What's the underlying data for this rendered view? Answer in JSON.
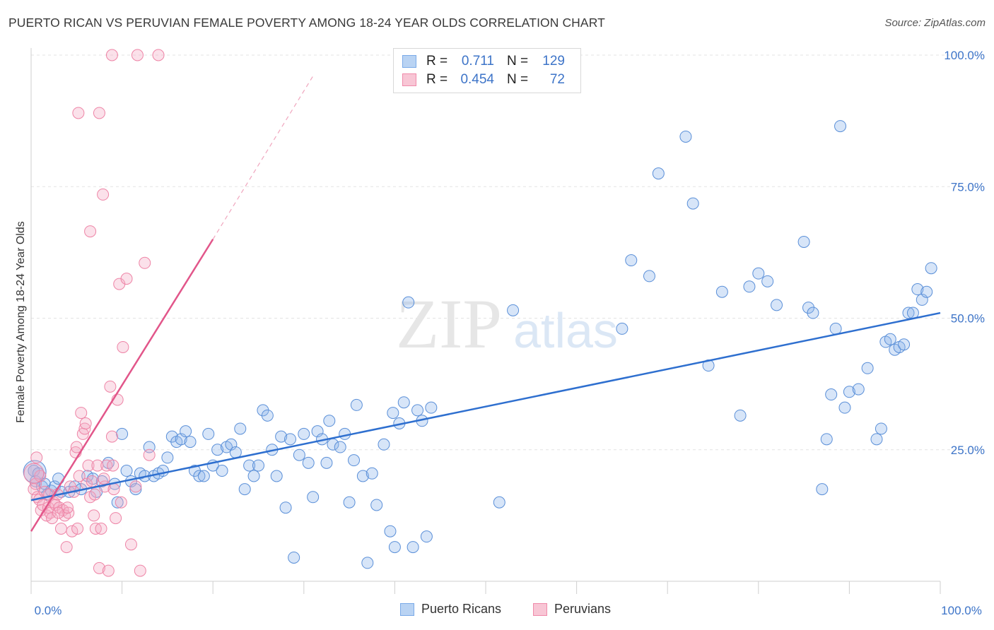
{
  "header": {
    "title": "PUERTO RICAN VS PERUVIAN FEMALE POVERTY AMONG 18-24 YEAR OLDS CORRELATION CHART",
    "source": "Source: ZipAtlas.com"
  },
  "watermark": {
    "zip": "ZIP",
    "atlas": "atlas"
  },
  "legend": {
    "rows": [
      {
        "r_label": "R =",
        "r_value": "0.711",
        "n_label": "N =",
        "n_value": "129",
        "color": "#7aaae8",
        "fill": "#b9d3f3"
      },
      {
        "r_label": "R =",
        "r_value": "0.454",
        "n_label": "N =",
        "n_value": "72",
        "color": "#f08aaa",
        "fill": "#f8c6d5"
      }
    ]
  },
  "bottom_legend": {
    "items": [
      {
        "label": "Puerto Ricans"
      },
      {
        "label": "Peruvians"
      }
    ]
  },
  "chart_data": {
    "type": "scatter",
    "title": "PUERTO RICAN VS PERUVIAN FEMALE POVERTY AMONG 18-24 YEAR OLDS CORRELATION CHART",
    "xlabel": "",
    "ylabel": "Female Poverty Among 18-24 Year Olds",
    "xlim": [
      0,
      100
    ],
    "ylim": [
      0,
      100
    ],
    "x_tick_labels": [
      "0.0%",
      "100.0%"
    ],
    "y_tick_labels": [
      "25.0%",
      "50.0%",
      "75.0%",
      "100.0%"
    ],
    "y_ticks": [
      25,
      50,
      75,
      100
    ],
    "grid": true,
    "legend_position": "top-center",
    "series": [
      {
        "name": "Puerto Ricans",
        "color": "#5a8fd8",
        "fill": "rgba(140,180,235,0.35)",
        "trend": {
          "x": [
            0,
            100
          ],
          "y": [
            15.4,
            51.0
          ],
          "color": "#2e6fcf"
        },
        "points": [
          [
            0.3,
            21.0
          ],
          [
            0.5,
            19.0
          ],
          [
            0.8,
            20.5
          ],
          [
            1.2,
            18.0
          ],
          [
            1.5,
            18.5
          ],
          [
            1.8,
            16.5
          ],
          [
            2.2,
            17.2
          ],
          [
            2.6,
            18.0
          ],
          [
            3.0,
            19.5
          ],
          [
            3.3,
            17.0
          ],
          [
            4.2,
            17.0
          ],
          [
            4.8,
            18.0
          ],
          [
            5.5,
            17.5
          ],
          [
            6.2,
            20.0
          ],
          [
            6.8,
            19.5
          ],
          [
            7.2,
            17.0
          ],
          [
            7.8,
            19.0
          ],
          [
            8.5,
            22.5
          ],
          [
            9.2,
            18.5
          ],
          [
            9.5,
            15.0
          ],
          [
            10.0,
            28.0
          ],
          [
            10.5,
            21.0
          ],
          [
            11.0,
            19.0
          ],
          [
            11.5,
            17.5
          ],
          [
            12.0,
            20.5
          ],
          [
            12.5,
            20.0
          ],
          [
            13.0,
            25.5
          ],
          [
            13.5,
            20.0
          ],
          [
            14.0,
            20.5
          ],
          [
            14.5,
            21.0
          ],
          [
            15.0,
            23.5
          ],
          [
            15.5,
            27.5
          ],
          [
            16.0,
            26.5
          ],
          [
            16.5,
            27.0
          ],
          [
            17.0,
            28.5
          ],
          [
            17.5,
            26.5
          ],
          [
            18.0,
            21.0
          ],
          [
            18.5,
            20.0
          ],
          [
            19.0,
            20.0
          ],
          [
            19.5,
            28.0
          ],
          [
            20.0,
            22.0
          ],
          [
            20.5,
            25.0
          ],
          [
            21.0,
            21.0
          ],
          [
            21.5,
            25.5
          ],
          [
            22.0,
            26.0
          ],
          [
            22.5,
            24.5
          ],
          [
            23.0,
            29.0
          ],
          [
            23.5,
            17.5
          ],
          [
            24.0,
            22.0
          ],
          [
            24.5,
            20.0
          ],
          [
            25.0,
            22.0
          ],
          [
            25.5,
            32.5
          ],
          [
            26.0,
            31.5
          ],
          [
            26.5,
            25.0
          ],
          [
            27.0,
            20.0
          ],
          [
            27.5,
            27.5
          ],
          [
            28.0,
            14.0
          ],
          [
            28.5,
            27.0
          ],
          [
            28.9,
            4.5
          ],
          [
            29.5,
            24.0
          ],
          [
            30.0,
            28.0
          ],
          [
            30.5,
            22.5
          ],
          [
            31.0,
            16.0
          ],
          [
            31.5,
            28.5
          ],
          [
            32.0,
            27.0
          ],
          [
            32.5,
            22.5
          ],
          [
            32.8,
            30.5
          ],
          [
            33.2,
            26.0
          ],
          [
            34.0,
            25.5
          ],
          [
            34.5,
            28.0
          ],
          [
            35.0,
            15.0
          ],
          [
            35.5,
            23.0
          ],
          [
            35.8,
            33.5
          ],
          [
            36.5,
            20.0
          ],
          [
            37.0,
            3.5
          ],
          [
            37.5,
            20.5
          ],
          [
            38.0,
            14.5
          ],
          [
            38.8,
            26.0
          ],
          [
            39.5,
            9.5
          ],
          [
            39.8,
            32.0
          ],
          [
            40.0,
            6.5
          ],
          [
            40.5,
            30.0
          ],
          [
            41.0,
            34.0
          ],
          [
            41.5,
            53.0
          ],
          [
            42.0,
            6.5
          ],
          [
            42.5,
            32.5
          ],
          [
            43.0,
            30.5
          ],
          [
            43.5,
            8.5
          ],
          [
            44.0,
            33.0
          ],
          [
            51.5,
            15.0
          ],
          [
            53.0,
            51.5
          ],
          [
            65.0,
            48.0
          ],
          [
            66.0,
            61.0
          ],
          [
            68.0,
            58.0
          ],
          [
            69.0,
            77.5
          ],
          [
            72.0,
            84.5
          ],
          [
            72.8,
            71.8
          ],
          [
            74.5,
            41.0
          ],
          [
            76.0,
            55.0
          ],
          [
            78.0,
            31.5
          ],
          [
            79.0,
            56.0
          ],
          [
            80.0,
            58.5
          ],
          [
            81.0,
            57.0
          ],
          [
            82.0,
            52.5
          ],
          [
            85.0,
            64.5
          ],
          [
            85.5,
            52.0
          ],
          [
            86.0,
            51.0
          ],
          [
            87.0,
            17.5
          ],
          [
            87.5,
            27.0
          ],
          [
            88.0,
            35.5
          ],
          [
            88.5,
            48.0
          ],
          [
            89.0,
            86.5
          ],
          [
            89.5,
            33.0
          ],
          [
            90.0,
            36.0
          ],
          [
            91.0,
            36.5
          ],
          [
            92.0,
            40.5
          ],
          [
            93.0,
            27.0
          ],
          [
            93.5,
            29.0
          ],
          [
            94.0,
            45.5
          ],
          [
            94.5,
            46.0
          ],
          [
            95.0,
            44.0
          ],
          [
            95.5,
            44.5
          ],
          [
            96.0,
            45.0
          ],
          [
            96.5,
            51.0
          ],
          [
            97.0,
            51.0
          ],
          [
            97.5,
            55.5
          ],
          [
            98.0,
            53.5
          ],
          [
            98.5,
            55.0
          ],
          [
            99.0,
            59.5
          ]
        ],
        "large_points": [
          [
            0.4,
            20.8,
            16
          ]
        ]
      },
      {
        "name": "Peruvians",
        "color": "#ee84a6",
        "fill": "rgba(244,170,195,0.35)",
        "trend": {
          "x": [
            0,
            20
          ],
          "y": [
            9.5,
            65.0
          ],
          "dash_to": [
            31,
            96
          ],
          "color": "#e2568a"
        },
        "points": [
          [
            0.3,
            17.5
          ],
          [
            0.5,
            18.5
          ],
          [
            0.7,
            16.0
          ],
          [
            0.9,
            15.5
          ],
          [
            1.1,
            13.5
          ],
          [
            1.3,
            14.5
          ],
          [
            1.5,
            17.0
          ],
          [
            1.7,
            12.5
          ],
          [
            1.9,
            14.0
          ],
          [
            2.1,
            13.0
          ],
          [
            2.3,
            12.0
          ],
          [
            2.5,
            15.0
          ],
          [
            2.7,
            14.5
          ],
          [
            2.9,
            16.5
          ],
          [
            3.1,
            14.0
          ],
          [
            3.3,
            10.0
          ],
          [
            3.5,
            13.5
          ],
          [
            3.7,
            12.5
          ],
          [
            3.9,
            6.5
          ],
          [
            4.1,
            13.0
          ],
          [
            4.3,
            18.0
          ],
          [
            4.5,
            9.5
          ],
          [
            4.7,
            17.0
          ],
          [
            4.9,
            24.5
          ],
          [
            5.1,
            10.0
          ],
          [
            5.3,
            20.0
          ],
          [
            5.5,
            32.0
          ],
          [
            5.7,
            28.0
          ],
          [
            5.9,
            29.0
          ],
          [
            6.1,
            18.5
          ],
          [
            6.3,
            22.0
          ],
          [
            6.5,
            16.0
          ],
          [
            6.7,
            19.0
          ],
          [
            6.9,
            12.5
          ],
          [
            7.1,
            10.0
          ],
          [
            7.3,
            22.0
          ],
          [
            7.5,
            2.5
          ],
          [
            7.7,
            10.0
          ],
          [
            7.9,
            73.5
          ],
          [
            8.1,
            18.0
          ],
          [
            8.3,
            22.0
          ],
          [
            8.5,
            2.0
          ],
          [
            8.7,
            37.0
          ],
          [
            8.9,
            27.5
          ],
          [
            9.1,
            17.5
          ],
          [
            9.3,
            12.0
          ],
          [
            9.5,
            34.5
          ],
          [
            9.7,
            56.5
          ],
          [
            9.9,
            15.0
          ],
          [
            10.1,
            44.5
          ],
          [
            10.5,
            57.5
          ],
          [
            11.0,
            7.0
          ],
          [
            11.5,
            18.0
          ],
          [
            12.0,
            2.0
          ],
          [
            12.5,
            60.5
          ],
          [
            13.0,
            24.0
          ],
          [
            5.2,
            89.0
          ],
          [
            7.5,
            89.0
          ],
          [
            8.9,
            100.0
          ],
          [
            11.7,
            100.0
          ],
          [
            14.0,
            100.0
          ],
          [
            6.5,
            66.5
          ],
          [
            5.0,
            25.5
          ],
          [
            4.0,
            14.0
          ],
          [
            3.0,
            13.0
          ],
          [
            2.0,
            16.5
          ],
          [
            1.0,
            20.0
          ],
          [
            0.6,
            23.5
          ],
          [
            8.0,
            19.5
          ],
          [
            6.0,
            30.0
          ],
          [
            9.0,
            22.0
          ],
          [
            7.0,
            16.5
          ]
        ],
        "large_points": [
          [
            0.3,
            20.5,
            14
          ]
        ]
      }
    ]
  }
}
